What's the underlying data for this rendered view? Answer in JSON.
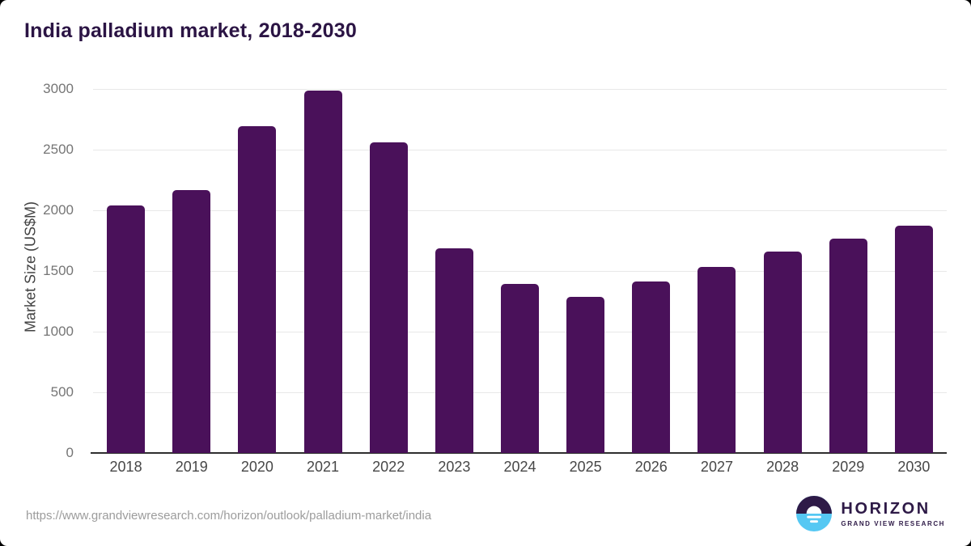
{
  "page": {
    "title": "India palladium market, 2018-2030",
    "source_url": "https://www.grandviewresearch.com/horizon/outlook/palladium-market/india"
  },
  "chart_data": {
    "type": "bar",
    "title": "India palladium market, 2018-2030",
    "categories": [
      "2018",
      "2019",
      "2020",
      "2021",
      "2022",
      "2023",
      "2024",
      "2025",
      "2026",
      "2027",
      "2028",
      "2029",
      "2030"
    ],
    "values": [
      2040,
      2165,
      2695,
      2990,
      2560,
      1690,
      1395,
      1290,
      1415,
      1535,
      1660,
      1770,
      1875
    ],
    "xlabel": "",
    "ylabel": "Market Size (US$M)",
    "ylim": [
      0,
      3000
    ],
    "yticks": [
      0,
      500,
      1000,
      1500,
      2000,
      2500,
      3000
    ],
    "grid": true,
    "legend": false,
    "bar_color": "#4a115a",
    "title_color": "#2b1444",
    "gridline_color": "#e8e8e8",
    "axis_color": "#2f2f2f"
  },
  "branding": {
    "logo_title": "HORIZON",
    "logo_subtitle": "GRAND VIEW RESEARCH",
    "logo_dark": "#2e1a47",
    "logo_blue": "#55c8f3"
  }
}
